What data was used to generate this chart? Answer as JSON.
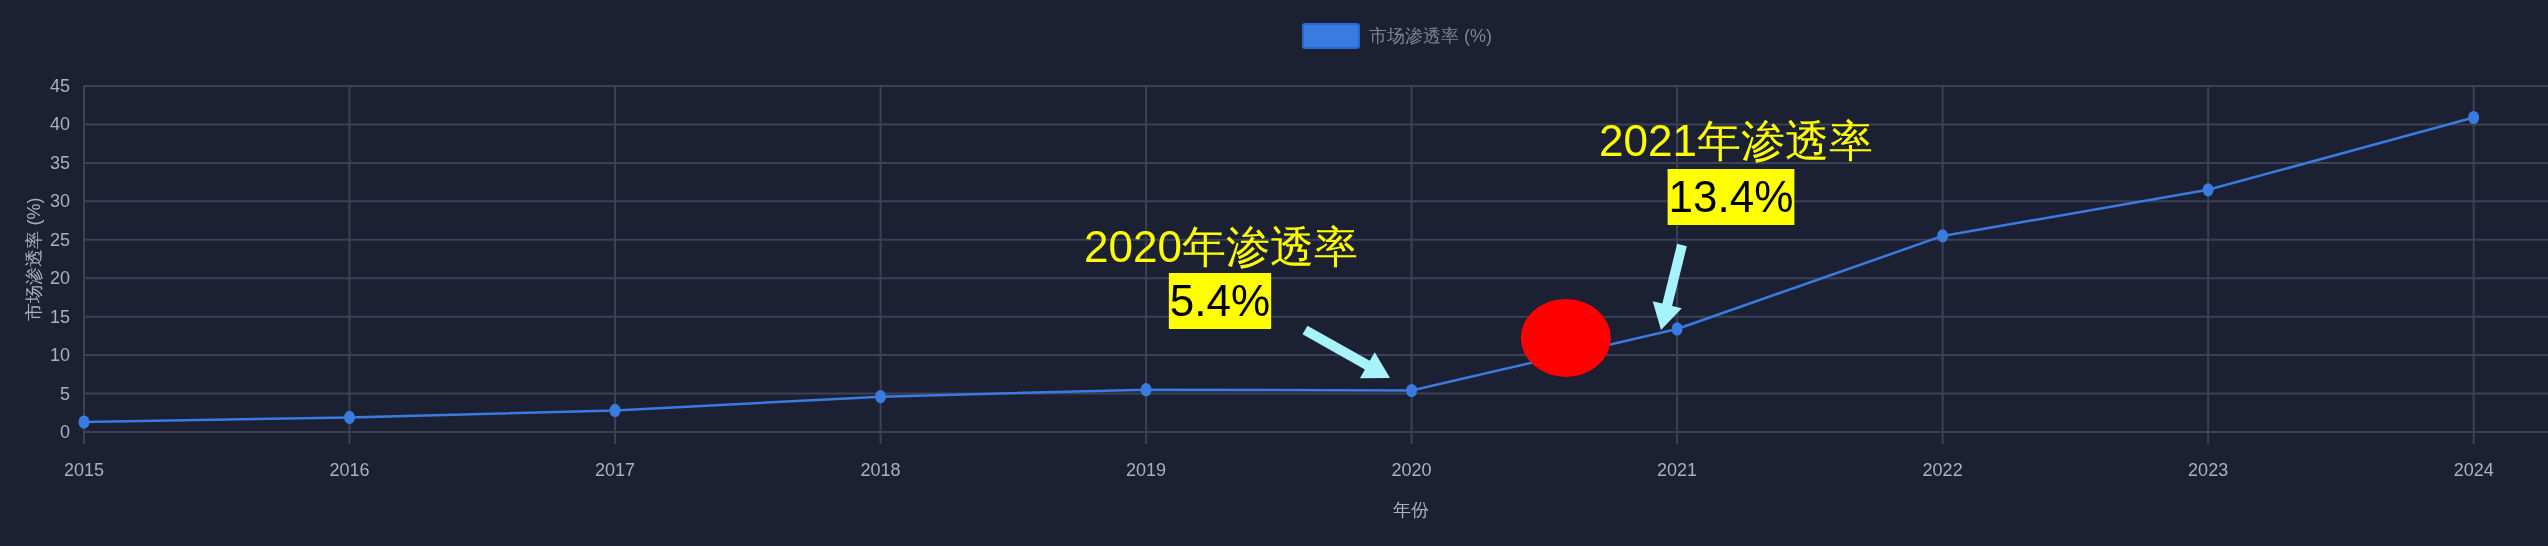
{
  "chart_data": {
    "type": "line",
    "xlabel": "年份",
    "ylabel": "市场渗透率 (%)",
    "x": [
      2015,
      2016,
      2017,
      2018,
      2019,
      2020,
      2021,
      2022,
      2023,
      2024
    ],
    "series": [
      {
        "name": "市场渗透率 (%)",
        "color": "#3a7be0",
        "values": [
          1.3,
          1.9,
          2.8,
          4.6,
          5.5,
          5.4,
          13.4,
          25.5,
          31.5,
          40.9
        ]
      }
    ],
    "xlim": [
      2015,
      2024.28
    ],
    "ylim": [
      0,
      45
    ],
    "xticks": [
      2015,
      2016,
      2017,
      2018,
      2019,
      2020,
      2021,
      2022,
      2023,
      2024
    ],
    "yticks": [
      0,
      5,
      10,
      15,
      20,
      25,
      30,
      35,
      40,
      45
    ],
    "grid": true,
    "legend": "top",
    "marker": "circle",
    "line_style": "solid",
    "annotations": [
      "2020年渗透率",
      "5.4%",
      "2021年渗透率",
      "13.4%"
    ]
  }
}
